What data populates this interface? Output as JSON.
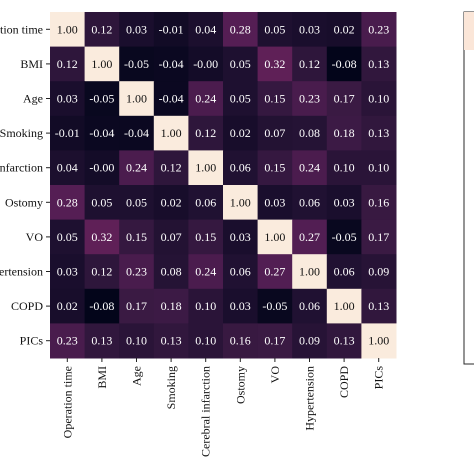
{
  "chart_data": {
    "type": "heatmap",
    "labels": [
      "Operation time",
      "BMI",
      "Age",
      "Smoking",
      "Cerebral infarction",
      "Ostomy",
      "VO",
      "Hypertension",
      "COPD",
      "PICs"
    ],
    "values": [
      [
        1.0,
        0.12,
        0.03,
        -0.01,
        0.04,
        0.28,
        0.05,
        0.03,
        0.02,
        0.23
      ],
      [
        0.12,
        1.0,
        -0.05,
        -0.04,
        -0.0,
        0.05,
        0.32,
        0.12,
        -0.08,
        0.13
      ],
      [
        0.03,
        -0.05,
        1.0,
        -0.04,
        0.24,
        0.05,
        0.15,
        0.23,
        0.17,
        0.1
      ],
      [
        -0.01,
        -0.04,
        -0.04,
        1.0,
        0.12,
        0.02,
        0.07,
        0.08,
        0.18,
        0.13
      ],
      [
        0.04,
        -0.0,
        0.24,
        0.12,
        1.0,
        0.06,
        0.15,
        0.24,
        0.1,
        0.1
      ],
      [
        0.28,
        0.05,
        0.05,
        0.02,
        0.06,
        1.0,
        0.03,
        0.06,
        0.03,
        0.16
      ],
      [
        0.05,
        0.32,
        0.15,
        0.07,
        0.15,
        0.03,
        1.0,
        0.27,
        -0.05,
        0.17
      ],
      [
        0.03,
        0.12,
        0.23,
        0.08,
        0.24,
        0.06,
        0.27,
        1.0,
        0.06,
        0.09
      ],
      [
        0.02,
        -0.08,
        0.17,
        0.18,
        0.1,
        0.03,
        -0.05,
        0.06,
        1.0,
        0.13
      ],
      [
        0.23,
        0.13,
        0.1,
        0.13,
        0.1,
        0.16,
        0.17,
        0.09,
        0.13,
        1.0
      ]
    ],
    "colormap": "rocket",
    "color_range": [
      -0.08,
      1.0
    ],
    "colorbar": true,
    "title": "",
    "xlabel": "",
    "ylabel": ""
  }
}
